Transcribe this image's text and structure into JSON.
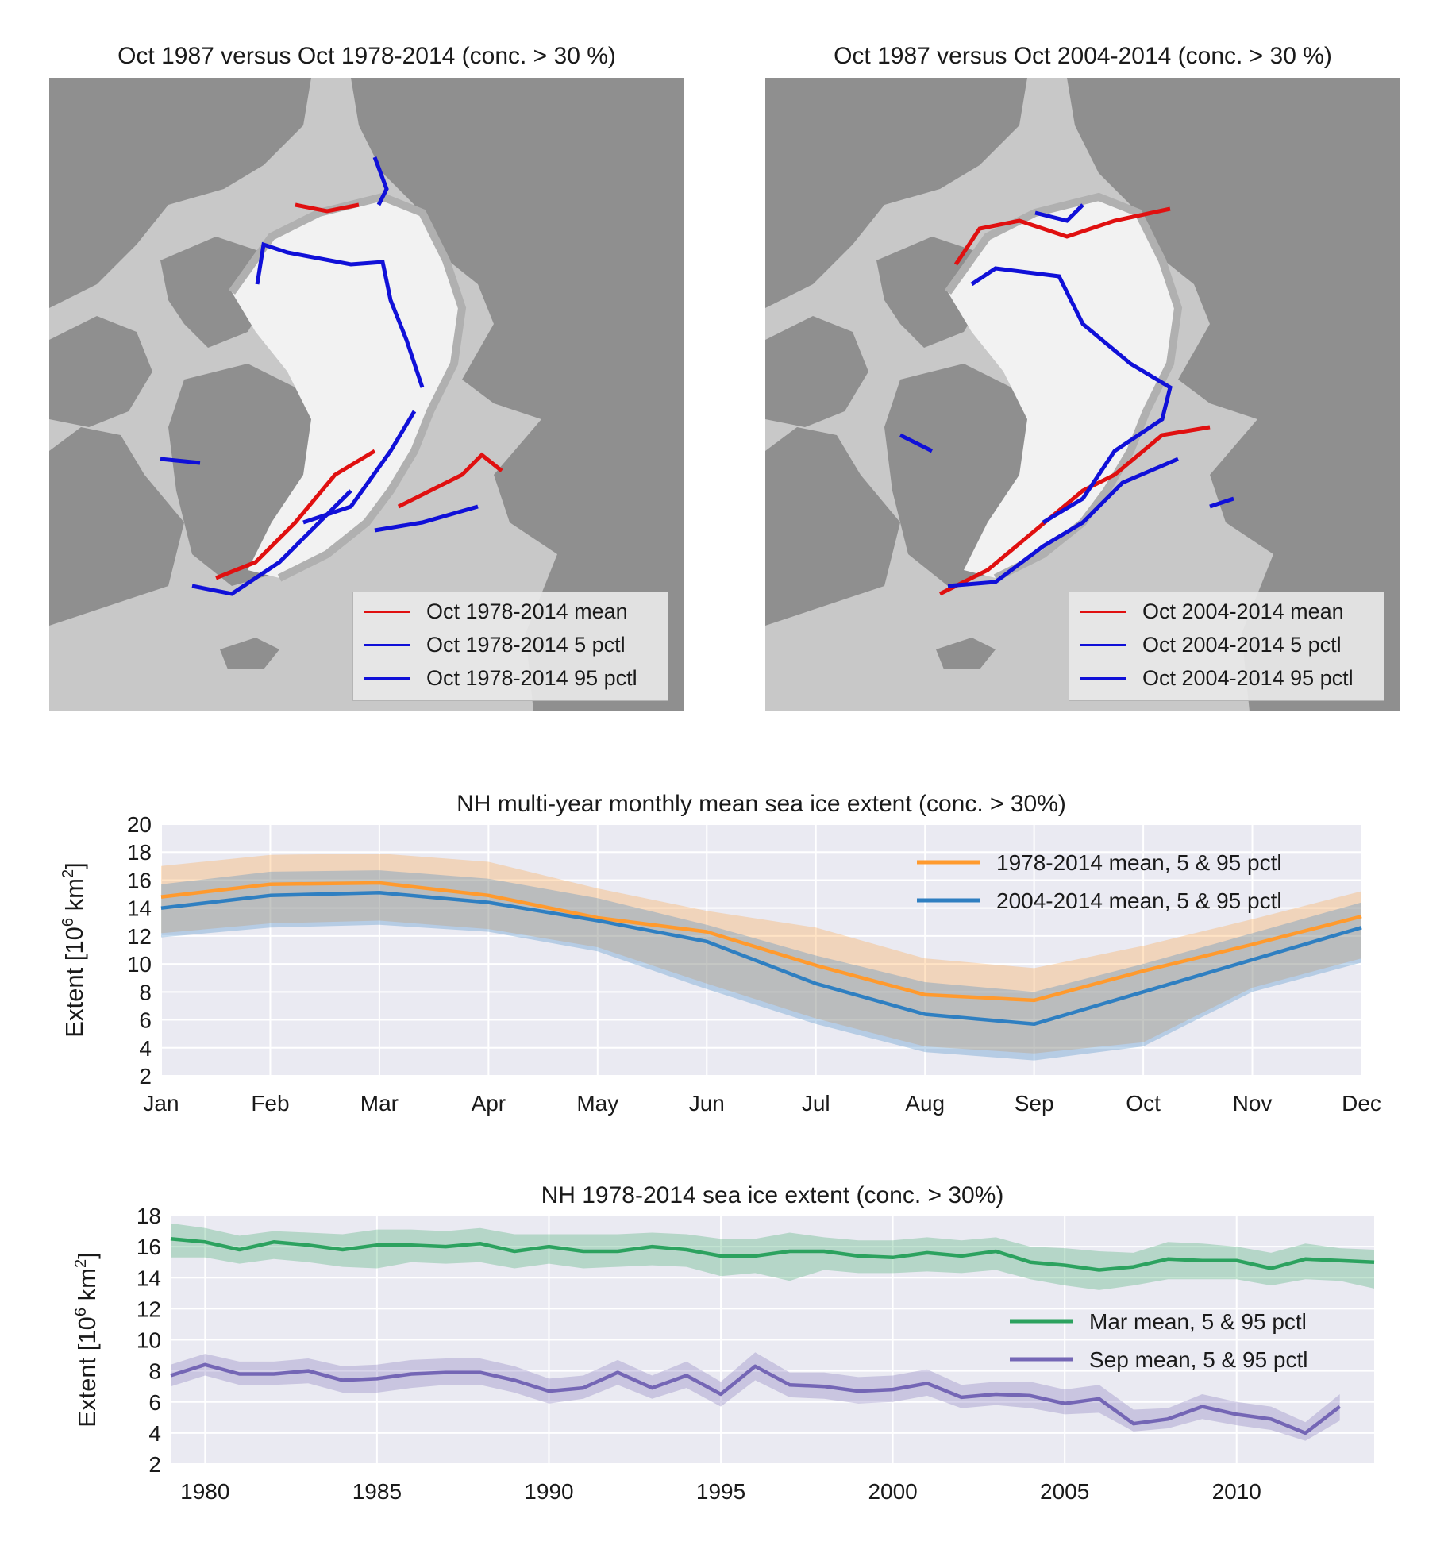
{
  "maps": [
    {
      "title": "Oct 1987 versus Oct 1978-2014 (conc. > 30 %)",
      "legend": [
        {
          "label": "Oct 1978-2014 mean",
          "color": "#e01010"
        },
        {
          "label": "Oct 1978-2014 5 pctl",
          "color": "#1010d8"
        },
        {
          "label": "Oct 1978-2014 95 pctl",
          "color": "#1010d8"
        }
      ]
    },
    {
      "title": "Oct 1987 versus Oct 2004-2014 (conc. > 30 %)",
      "legend": [
        {
          "label": "Oct 2004-2014 mean",
          "color": "#e01010"
        },
        {
          "label": "Oct 2004-2014 5 pctl",
          "color": "#1010d8"
        },
        {
          "label": "Oct 2004-2014 95 pctl",
          "color": "#1010d8"
        }
      ]
    }
  ],
  "colors": {
    "land": "#8f8f8f",
    "ocean": "#c8c8c8",
    "ice": "#f2f2f2",
    "plot_bg": "#eaeaf2",
    "grid": "#ffffff",
    "orange": "#ff9a2e",
    "blue": "#2f7fc1",
    "green": "#2ca25f",
    "purple": "#7466b5"
  },
  "chart_data": [
    {
      "type": "line",
      "title": "NH multi-year monthly mean sea ice extent (conc. > 30%)",
      "xlabel": "",
      "ylabel": "Extent [10^6 km^2]",
      "categories": [
        "Jan",
        "Feb",
        "Mar",
        "Apr",
        "May",
        "Jun",
        "Jul",
        "Aug",
        "Sep",
        "Oct",
        "Nov",
        "Dec"
      ],
      "ylim": [
        2,
        20
      ],
      "yticks": [
        2,
        4,
        6,
        8,
        10,
        12,
        14,
        16,
        18,
        20
      ],
      "legend_position": "top-right",
      "grid": true,
      "series": [
        {
          "name": "1978-2014 mean, 5 & 95 pctl",
          "color": "#ff9a2e",
          "values": [
            14.8,
            15.7,
            15.8,
            14.9,
            13.3,
            12.3,
            9.9,
            7.8,
            7.4,
            9.5,
            11.4,
            13.4
          ],
          "p5": [
            12.2,
            12.9,
            13.1,
            12.5,
            11.2,
            8.6,
            6.1,
            4.1,
            3.6,
            4.4,
            8.3,
            10.4
          ],
          "p95": [
            17.0,
            17.8,
            17.9,
            17.3,
            15.4,
            13.8,
            12.6,
            10.4,
            9.7,
            11.3,
            13.2,
            15.2
          ]
        },
        {
          "name": "2004-2014 mean, 5 & 95 pctl",
          "color": "#2f7fc1",
          "values": [
            14.0,
            14.9,
            15.1,
            14.4,
            13.1,
            11.6,
            8.6,
            6.4,
            5.7,
            8.0,
            10.3,
            12.6
          ],
          "p5": [
            11.9,
            12.6,
            12.8,
            12.3,
            10.9,
            8.2,
            5.7,
            3.7,
            3.1,
            4.1,
            8.0,
            10.1
          ],
          "p95": [
            15.7,
            16.6,
            16.7,
            16.1,
            14.7,
            12.8,
            10.6,
            8.7,
            8.0,
            10.0,
            12.2,
            14.4
          ]
        }
      ]
    },
    {
      "type": "line",
      "title": "NH 1978-2014 sea ice extent (conc. > 30%)",
      "xlabel": "",
      "ylabel": "Extent [10^6 km^2]",
      "xlim": [
        1979,
        2014
      ],
      "xticks": [
        1980,
        1985,
        1990,
        1995,
        2000,
        2005,
        2010
      ],
      "ylim": [
        2,
        18
      ],
      "yticks": [
        2,
        4,
        6,
        8,
        10,
        12,
        14,
        16,
        18
      ],
      "legend_position": "center-right",
      "grid": true,
      "series": [
        {
          "name": "Mar mean, 5 & 95 pctl",
          "color": "#2ca25f",
          "x": [
            1979,
            1980,
            1981,
            1982,
            1983,
            1984,
            1985,
            1986,
            1987,
            1988,
            1989,
            1990,
            1991,
            1992,
            1993,
            1994,
            1995,
            1996,
            1997,
            1998,
            1999,
            2000,
            2001,
            2002,
            2003,
            2004,
            2005,
            2006,
            2007,
            2008,
            2009,
            2010,
            2011,
            2012,
            2013,
            2014
          ],
          "values": [
            16.5,
            16.3,
            15.8,
            16.3,
            16.1,
            15.8,
            16.1,
            16.1,
            16.0,
            16.2,
            15.7,
            16.0,
            15.7,
            15.7,
            16.0,
            15.8,
            15.4,
            15.4,
            15.7,
            15.7,
            15.4,
            15.3,
            15.6,
            15.4,
            15.7,
            15.0,
            14.8,
            14.5,
            14.7,
            15.2,
            15.1,
            15.1,
            14.6,
            15.2,
            15.1,
            15.0
          ],
          "p5": [
            15.3,
            15.3,
            14.9,
            15.2,
            15.0,
            14.7,
            14.6,
            15.0,
            14.9,
            15.0,
            14.6,
            14.9,
            14.6,
            14.7,
            14.8,
            14.7,
            14.1,
            14.3,
            13.8,
            14.5,
            14.3,
            14.3,
            14.4,
            14.3,
            14.5,
            13.9,
            13.5,
            13.2,
            13.5,
            13.9,
            13.9,
            13.9,
            13.5,
            13.9,
            13.8,
            13.3
          ],
          "p95": [
            17.5,
            17.2,
            16.7,
            17.0,
            16.9,
            16.8,
            17.1,
            17.1,
            17.0,
            17.2,
            16.8,
            16.8,
            16.8,
            16.8,
            16.9,
            16.8,
            16.5,
            16.5,
            16.9,
            16.6,
            16.4,
            16.4,
            16.6,
            16.4,
            16.6,
            16.0,
            15.9,
            15.7,
            15.6,
            16.3,
            16.2,
            16.0,
            15.6,
            16.2,
            15.9,
            15.8
          ]
        },
        {
          "name": "Sep mean, 5 & 95 pctl",
          "color": "#7466b5",
          "x": [
            1979,
            1980,
            1981,
            1982,
            1983,
            1984,
            1985,
            1986,
            1987,
            1988,
            1989,
            1990,
            1991,
            1992,
            1993,
            1994,
            1995,
            1996,
            1997,
            1998,
            1999,
            2000,
            2001,
            2002,
            2003,
            2004,
            2005,
            2006,
            2007,
            2008,
            2009,
            2010,
            2011,
            2012,
            2013
          ],
          "values": [
            7.7,
            8.4,
            7.8,
            7.8,
            8.0,
            7.4,
            7.5,
            7.8,
            7.9,
            7.9,
            7.4,
            6.7,
            6.9,
            7.9,
            6.9,
            7.7,
            6.5,
            8.3,
            7.1,
            7.0,
            6.7,
            6.8,
            7.2,
            6.3,
            6.5,
            6.4,
            5.9,
            6.2,
            4.6,
            4.9,
            5.7,
            5.2,
            4.9,
            4.0,
            5.7
          ],
          "p5": [
            7.0,
            7.7,
            7.1,
            7.1,
            7.2,
            6.6,
            6.6,
            6.9,
            7.1,
            7.1,
            6.6,
            5.9,
            6.2,
            7.1,
            6.2,
            6.9,
            5.7,
            7.4,
            6.3,
            6.2,
            5.9,
            6.0,
            6.4,
            5.6,
            5.8,
            5.6,
            5.2,
            5.3,
            4.1,
            4.3,
            4.9,
            4.5,
            4.2,
            3.5,
            4.8
          ],
          "p95": [
            8.4,
            9.1,
            8.6,
            8.6,
            8.8,
            8.3,
            8.4,
            8.7,
            8.8,
            8.8,
            8.3,
            7.5,
            7.7,
            8.7,
            7.7,
            8.6,
            7.3,
            9.2,
            7.9,
            7.9,
            7.6,
            7.7,
            8.1,
            7.1,
            7.3,
            7.3,
            6.8,
            7.1,
            5.5,
            5.6,
            6.5,
            6.0,
            5.7,
            4.7,
            6.5
          ]
        }
      ]
    }
  ]
}
